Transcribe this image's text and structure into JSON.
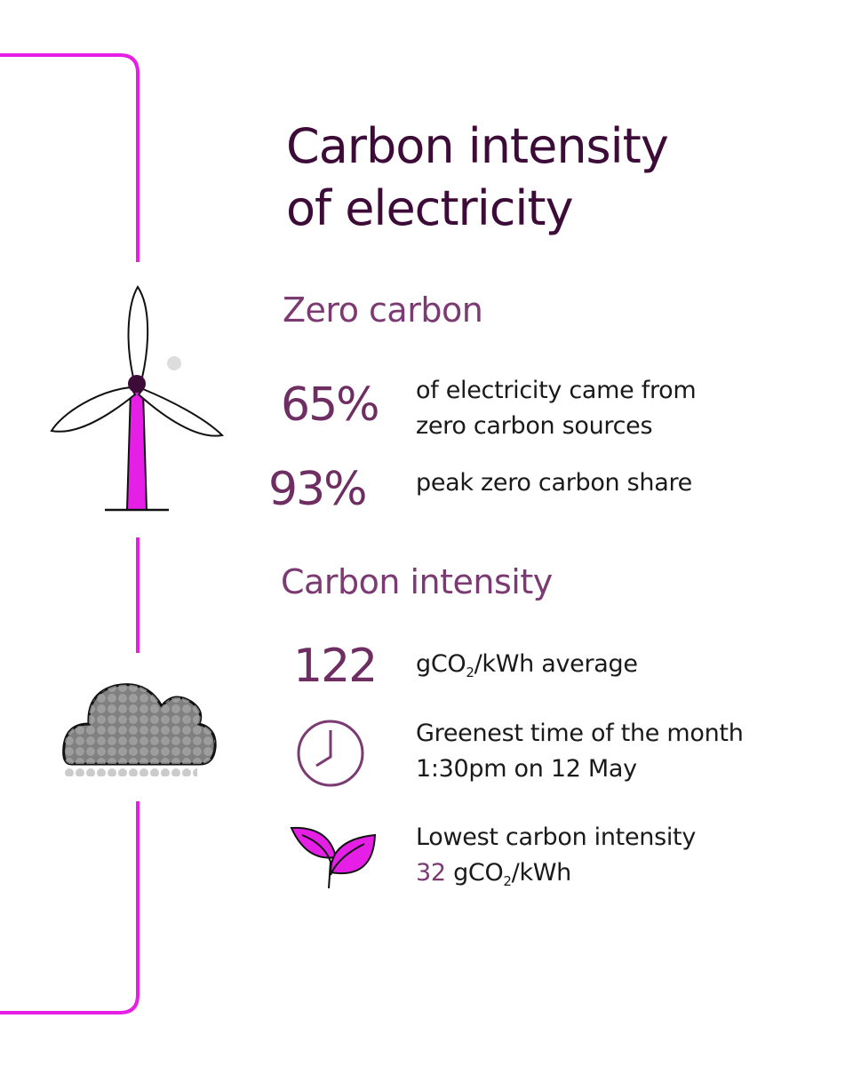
{
  "title": [
    "Carbon intensity",
    "of electricity"
  ],
  "zero_carbon": {
    "heading": "Zero carbon",
    "stats": [
      {
        "value": "65%",
        "lines": [
          "of electricity came from",
          "zero carbon sources"
        ]
      },
      {
        "value": "93%",
        "lines": [
          "peak zero carbon share"
        ]
      }
    ]
  },
  "carbon_intensity": {
    "heading": "Carbon intensity",
    "average": {
      "value": "122",
      "unit_prefix": "gCO",
      "unit_sub": "2",
      "unit_suffix": "/kWh average"
    },
    "greenest": {
      "lines": [
        "Greenest time of the month",
        "1:30pm on 12 May"
      ]
    },
    "lowest": {
      "line": "Lowest carbon intensity",
      "value": "32",
      "unit_prefix": "gCO",
      "unit_sub": "2",
      "unit_suffix": "/kWh"
    }
  }
}
